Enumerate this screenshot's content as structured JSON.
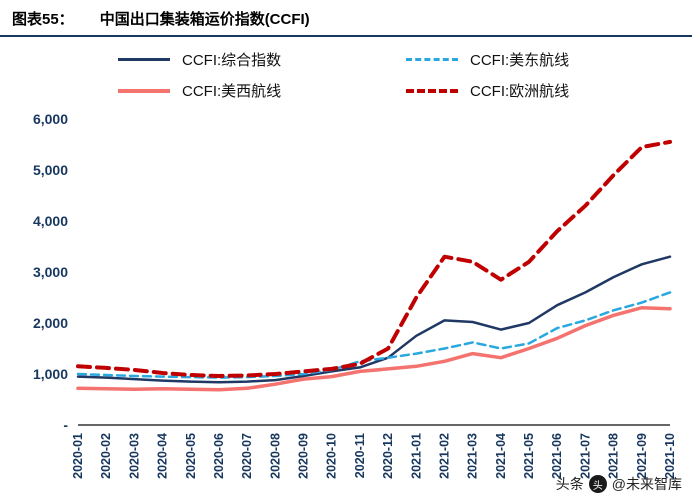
{
  "header": {
    "figure_label": "图表55：",
    "title": "中国出口集装箱运价指数(CCFI)"
  },
  "watermark": {
    "left": "头条",
    "right": "@未来智库"
  },
  "chart_data": {
    "type": "line",
    "title": "中国出口集装箱运价指数(CCFI)",
    "xlabel": "",
    "ylabel": "",
    "ylim": [
      0,
      6000
    ],
    "grid": false,
    "legend_position": "top",
    "y_ticks": [
      {
        "value": 0,
        "label": "-"
      },
      {
        "value": 1000,
        "label": "1,000"
      },
      {
        "value": 2000,
        "label": "2,000"
      },
      {
        "value": 3000,
        "label": "3,000"
      },
      {
        "value": 4000,
        "label": "4,000"
      },
      {
        "value": 5000,
        "label": "5,000"
      },
      {
        "value": 6000,
        "label": "6,000"
      }
    ],
    "categories": [
      "2020-01",
      "2020-02",
      "2020-03",
      "2020-04",
      "2020-05",
      "2020-06",
      "2020-07",
      "2020-08",
      "2020-09",
      "2020-10",
      "2020-11",
      "2020-12",
      "2021-01",
      "2021-02",
      "2021-03",
      "2021-04",
      "2021-05",
      "2021-06",
      "2021-07",
      "2021-08",
      "2021-09",
      "2021-10"
    ],
    "series": [
      {
        "name": "CCFI:综合指数",
        "color": "#1F3864",
        "dash": "solid",
        "values": [
          950,
          930,
          900,
          870,
          850,
          840,
          850,
          880,
          960,
          1050,
          1130,
          1320,
          1750,
          2050,
          2020,
          1870,
          2000,
          2350,
          2600,
          2900,
          3150,
          3300
        ]
      },
      {
        "name": "CCFI:美东航线",
        "color": "#29A8E0",
        "dash": "dashed",
        "values": [
          1000,
          980,
          960,
          950,
          940,
          930,
          940,
          960,
          1000,
          1080,
          1250,
          1320,
          1400,
          1500,
          1620,
          1500,
          1600,
          1900,
          2050,
          2250,
          2400,
          2600
        ]
      },
      {
        "name": "CCFI:美西航线",
        "color": "#F4736F",
        "dash": "solid",
        "values": [
          720,
          710,
          700,
          710,
          700,
          690,
          720,
          800,
          900,
          950,
          1050,
          1100,
          1150,
          1250,
          1400,
          1320,
          1500,
          1700,
          1950,
          2150,
          2300,
          2280
        ]
      },
      {
        "name": "CCFI:欧洲航线",
        "color": "#C00000",
        "dash": "dashed",
        "values": [
          1150,
          1120,
          1080,
          1020,
          980,
          960,
          970,
          1000,
          1050,
          1100,
          1200,
          1500,
          2500,
          3300,
          3200,
          2850,
          3200,
          3800,
          4300,
          4900,
          5450,
          5550
        ]
      }
    ]
  }
}
